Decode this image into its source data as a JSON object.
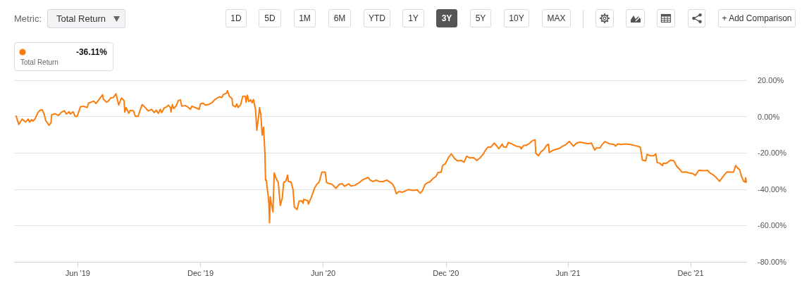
{
  "chart_data": {
    "type": "line",
    "x": [
      "2019-03-01",
      "2019-03-05",
      "2019-03-10",
      "2019-03-15",
      "2019-03-19",
      "2019-03-21",
      "2019-03-24",
      "2019-03-26",
      "2019-03-29",
      "2019-04-03",
      "2019-04-06",
      "2019-04-09",
      "2019-04-12",
      "2019-04-14",
      "2019-04-19",
      "2019-04-22",
      "2019-04-23",
      "2019-04-28",
      "2019-05-03",
      "2019-05-08",
      "2019-05-12",
      "2019-05-15",
      "2019-05-19",
      "2019-05-21",
      "2019-05-25",
      "2019-05-28",
      "2019-05-31",
      "2019-06-05",
      "2019-06-09",
      "2019-06-15",
      "2019-06-17",
      "2019-06-25",
      "2019-06-28",
      "2019-07-03",
      "2019-07-08",
      "2019-07-09",
      "2019-07-14",
      "2019-07-16",
      "2019-07-20",
      "2019-07-24",
      "2019-07-28",
      "2019-08-01",
      "2019-08-05",
      "2019-08-09",
      "2019-08-10",
      "2019-08-12",
      "2019-08-16",
      "2019-08-18",
      "2019-08-23",
      "2019-08-26",
      "2019-08-30",
      "2019-09-02",
      "2019-09-05",
      "2019-09-10",
      "2019-09-14",
      "2019-09-19",
      "2019-09-23",
      "2019-09-26",
      "2019-09-29",
      "2019-10-02",
      "2019-10-04",
      "2019-10-08",
      "2019-10-12",
      "2019-10-14",
      "2019-10-17",
      "2019-10-18",
      "2019-10-20",
      "2019-10-22",
      "2019-10-26",
      "2019-10-29",
      "2019-11-01",
      "2019-11-03",
      "2019-11-08",
      "2019-11-12",
      "2019-11-16",
      "2019-11-18",
      "2019-11-24",
      "2019-11-29",
      "2019-12-01",
      "2019-12-05",
      "2019-12-08",
      "2019-12-13",
      "2019-12-18",
      "2019-12-22",
      "2019-12-26",
      "2019-12-29",
      "2020-01-02",
      "2020-01-04",
      "2020-01-09",
      "2020-01-10",
      "2020-01-13",
      "2020-01-17",
      "2020-01-18",
      "2020-01-22",
      "2020-01-24",
      "2020-01-26",
      "2020-01-30",
      "2020-02-02",
      "2020-02-06",
      "2020-02-07",
      "2020-02-09",
      "2020-02-11",
      "2020-02-14",
      "2020-02-16",
      "2020-02-18",
      "2020-02-21",
      "2020-02-23",
      "2020-02-26",
      "2020-02-27",
      "2020-02-29",
      "2020-03-02",
      "2020-03-04",
      "2020-03-06",
      "2020-03-07",
      "2020-03-08",
      "2020-03-11",
      "2020-03-12",
      "2020-03-13",
      "2020-03-14",
      "2020-03-15",
      "2020-03-18",
      "2020-03-20",
      "2020-03-23",
      "2020-03-26",
      "2020-03-29",
      "2020-04-01",
      "2020-04-03",
      "2020-04-06",
      "2020-04-09",
      "2020-04-10",
      "2020-04-14",
      "2020-04-17",
      "2020-04-19",
      "2020-04-23",
      "2020-04-26",
      "2020-04-30",
      "2020-05-02",
      "2020-05-03",
      "2020-05-09",
      "2020-05-10",
      "2020-05-14",
      "2020-05-19",
      "2020-05-22",
      "2020-05-26",
      "2020-05-30",
      "2020-06-04",
      "2020-06-06",
      "2020-06-09",
      "2020-06-14",
      "2020-06-20",
      "2020-06-25",
      "2020-06-29",
      "2020-07-03",
      "2020-07-09",
      "2020-07-12",
      "2020-07-18",
      "2020-07-25",
      "2020-07-30",
      "2020-08-07",
      "2020-08-10",
      "2020-08-14",
      "2020-08-19",
      "2020-08-23",
      "2020-08-29",
      "2020-09-04",
      "2020-09-12",
      "2020-09-15",
      "2020-09-18",
      "2020-09-22",
      "2020-09-27",
      "2020-10-06",
      "2020-10-13",
      "2020-10-19",
      "2020-10-24",
      "2020-10-27",
      "2020-10-31",
      "2020-11-04",
      "2020-11-07",
      "2020-11-12",
      "2020-11-16",
      "2020-11-19",
      "2020-11-24",
      "2020-11-26",
      "2020-11-30",
      "2020-12-05",
      "2020-12-09",
      "2020-12-13",
      "2020-12-18",
      "2020-12-24",
      "2020-12-28",
      "2021-01-01",
      "2021-01-05",
      "2021-01-11",
      "2021-01-14",
      "2021-01-16",
      "2021-01-21",
      "2021-01-26",
      "2021-01-29",
      "2021-02-02",
      "2021-02-06",
      "2021-02-11",
      "2021-02-15",
      "2021-02-18",
      "2021-02-23",
      "2021-02-25",
      "2021-03-01",
      "2021-03-04",
      "2021-03-09",
      "2021-03-12",
      "2021-03-16",
      "2021-03-22",
      "2021-03-23",
      "2021-03-27",
      "2021-03-31",
      "2021-04-05",
      "2021-04-09",
      "2021-04-13",
      "2021-04-14",
      "2021-04-18",
      "2021-04-22",
      "2021-04-26",
      "2021-04-30",
      "2021-05-03",
      "2021-05-04",
      "2021-05-10",
      "2021-05-15",
      "2021-05-19",
      "2021-05-24",
      "2021-05-29",
      "2021-06-03",
      "2021-06-09",
      "2021-06-14",
      "2021-06-19",
      "2021-06-26",
      "2021-07-01",
      "2021-07-06",
      "2021-07-11",
      "2021-07-13",
      "2021-07-19",
      "2021-07-22",
      "2021-07-26",
      "2021-08-02",
      "2021-08-09",
      "2021-08-11",
      "2021-08-14",
      "2021-08-19",
      "2021-08-26",
      "2021-09-02",
      "2021-09-08",
      "2021-09-13",
      "2021-09-17",
      "2021-09-20",
      "2021-09-25",
      "2021-09-27",
      "2021-10-02",
      "2021-10-07",
      "2021-10-10",
      "2021-10-12",
      "2021-10-16",
      "2021-10-20",
      "2021-10-21",
      "2021-10-26",
      "2021-11-01",
      "2021-11-06",
      "2021-11-10",
      "2021-11-15",
      "2021-11-18",
      "2021-11-24",
      "2021-11-29",
      "2021-12-04",
      "2021-12-08",
      "2021-12-13",
      "2021-12-22",
      "2021-12-26",
      "2021-12-30",
      "2022-01-04",
      "2022-01-08",
      "2022-01-13",
      "2022-01-19",
      "2022-01-24",
      "2022-01-31",
      "2022-02-03",
      "2022-02-06",
      "2022-02-09",
      "2022-02-12",
      "2022-02-15",
      "2022-02-18",
      "2022-02-20",
      "2022-02-21",
      "2022-02-22"
    ],
    "series": [
      {
        "color": "#fb7d0d",
        "values": [
          0.3,
          -4.3,
          -1.4,
          -3.0,
          -1.4,
          -3.0,
          -1.7,
          -2.5,
          -1.4,
          2.5,
          3.5,
          3.7,
          1.2,
          -2.1,
          -4.8,
          -3.4,
          0.9,
          1.6,
          0.6,
          2.5,
          3.2,
          1.4,
          2.7,
          1.4,
          2.7,
          0.1,
          0.1,
          5.4,
          5.7,
          5.0,
          7.4,
          8.5,
          7.2,
          9.6,
          12.0,
          9.6,
          7.9,
          8.4,
          10.2,
          10.5,
          12.5,
          6.3,
          10.2,
          8.9,
          2.5,
          5.0,
          1.8,
          3.4,
          3.1,
          0.1,
          0.1,
          3.7,
          6.6,
          4.8,
          3.1,
          4.0,
          2.2,
          3.5,
          1.8,
          4.0,
          2.2,
          4.8,
          5.4,
          6.3,
          5.0,
          2.5,
          6.6,
          4.4,
          6.1,
          8.9,
          9.2,
          5.7,
          6.1,
          5.3,
          4.0,
          5.7,
          4.8,
          4.0,
          7.0,
          7.4,
          6.3,
          6.6,
          7.6,
          9.2,
          10.2,
          10.9,
          10.5,
          12.1,
          13.0,
          14.3,
          11.2,
          9.9,
          6.3,
          5.3,
          7.0,
          5.0,
          6.6,
          11.2,
          11.2,
          7.9,
          11.8,
          8.3,
          9.2,
          7.6,
          9.4,
          4.0,
          -7.6,
          1.2,
          5.0,
          0.9,
          -10.2,
          -5.9,
          -19.5,
          -35.0,
          -34.8,
          -44.1,
          -47.9,
          -58.5,
          -44.1,
          -46.6,
          -52.5,
          -31.1,
          -34.4,
          -36.3,
          -49.0,
          -44.7,
          -36.3,
          -35.7,
          -32.2,
          -35.7,
          -36.0,
          -40.2,
          -49.9,
          -51.2,
          -46.6,
          -46.4,
          -47.7,
          -45.6,
          -46.4,
          -48.2,
          -44.7,
          -39.5,
          -37.6,
          -36.0,
          -30.6,
          -30.6,
          -36.3,
          -36.8,
          -37.3,
          -39.5,
          -37.3,
          -37.0,
          -38.4,
          -37.0,
          -38.2,
          -37.9,
          -36.3,
          -34.8,
          -33.5,
          -35.0,
          -35.8,
          -35.0,
          -35.7,
          -35.8,
          -35.0,
          -37.0,
          -38.9,
          -42.5,
          -41.2,
          -41.7,
          -40.2,
          -40.7,
          -40.4,
          -42.2,
          -40.8,
          -37.3,
          -36.3,
          -36.0,
          -34.0,
          -33.1,
          -30.9,
          -30.6,
          -27.0,
          -26.0,
          -22.4,
          -20.5,
          -22.7,
          -24.4,
          -24.2,
          -25.1,
          -21.8,
          -22.7,
          -22.6,
          -23.4,
          -24.2,
          -22.7,
          -20.5,
          -18.5,
          -16.7,
          -16.9,
          -14.6,
          -16.3,
          -17.7,
          -15.1,
          -16.7,
          -16.9,
          -14.3,
          -15.0,
          -15.6,
          -16.3,
          -16.7,
          -17.8,
          -15.9,
          -15.9,
          -14.6,
          -13.3,
          -12.8,
          -20.2,
          -21.6,
          -19.3,
          -18.2,
          -15.9,
          -15.2,
          -19.8,
          -18.5,
          -18.0,
          -17.6,
          -16.3,
          -15.4,
          -13.7,
          -16.3,
          -14.6,
          -14.1,
          -14.6,
          -15.0,
          -14.6,
          -18.5,
          -17.3,
          -17.2,
          -15.4,
          -13.8,
          -15.0,
          -15.4,
          -16.3,
          -15.1,
          -15.4,
          -15.1,
          -15.4,
          -15.9,
          -16.3,
          -16.9,
          -24.0,
          -24.4,
          -20.8,
          -21.6,
          -21.6,
          -20.5,
          -25.3,
          -25.7,
          -27.0,
          -25.7,
          -25.7,
          -24.0,
          -24.4,
          -27.3,
          -29.2,
          -30.6,
          -30.5,
          -31.1,
          -31.4,
          -32.4,
          -29.6,
          -29.8,
          -29.6,
          -31.1,
          -32.2,
          -33.5,
          -35.7,
          -32.7,
          -30.5,
          -30.6,
          -30.6,
          -27.0,
          -28.3,
          -29.2,
          -33.1,
          -35.7,
          -36.1,
          -33.7,
          -36.1
        ]
      }
    ],
    "xlim": [
      "2019-02-26",
      "2022-02-23"
    ],
    "xticks": [
      {
        "value": "2019-06-01",
        "label": "Jun '19"
      },
      {
        "value": "2019-12-01",
        "label": "Dec '19"
      },
      {
        "value": "2020-06-01",
        "label": "Jun '20"
      },
      {
        "value": "2020-12-01",
        "label": "Dec '20"
      },
      {
        "value": "2021-06-01",
        "label": "Jun '21"
      },
      {
        "value": "2021-12-01",
        "label": "Dec '21"
      }
    ],
    "ylim": [
      -80,
      20
    ],
    "yticks": [
      {
        "value": -80,
        "label": "-80.00%"
      },
      {
        "value": -60,
        "label": "-60.00%"
      },
      {
        "value": -40,
        "label": "-40.00%"
      },
      {
        "value": -20,
        "label": "-20.00%"
      },
      {
        "value": 0,
        "label": "0.00%"
      },
      {
        "value": 20,
        "label": "20.00%"
      }
    ],
    "grid": "y",
    "marker": "none",
    "line_style": "solid",
    "annotations": [
      "Metric:",
      "Total Return",
      "1D",
      "5D",
      "1M",
      "6M",
      "YTD",
      "1Y",
      "3Y",
      "5Y",
      "10Y",
      "MAX",
      "+ Add Comparison",
      "-36.11%",
      "Total Return"
    ]
  }
}
